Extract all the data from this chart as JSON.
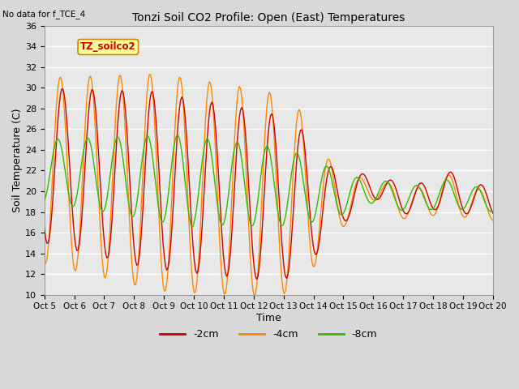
{
  "title": "Tonzi Soil CO2 Profile: Open (East) Temperatures",
  "subtitle": "No data for f_TCE_4",
  "xlabel": "Time",
  "ylabel": "Soil Temperature (C)",
  "ylim": [
    10,
    36
  ],
  "yticks": [
    10,
    12,
    14,
    16,
    18,
    20,
    22,
    24,
    26,
    28,
    30,
    32,
    34,
    36
  ],
  "fig_bg": "#d8d8d8",
  "plot_bg": "#e8e8e8",
  "grid_color": "#ffffff",
  "colors": {
    "-2cm": "#cc0000",
    "-4cm": "#ff8800",
    "-8cm": "#33bb00"
  },
  "legend_label": "TZ_soilco2",
  "x_tick_labels": [
    "Oct 5",
    "Oct 6",
    "Oct 7",
    "Oct 8",
    "Oct 9",
    "Oct 10",
    "Oct 11",
    "Oct 12",
    "Oct 13",
    "Oct 14",
    "Oct 15",
    "Oct 16",
    "Oct 17",
    "Oct 18",
    "Oct 19",
    "Oct 20"
  ]
}
